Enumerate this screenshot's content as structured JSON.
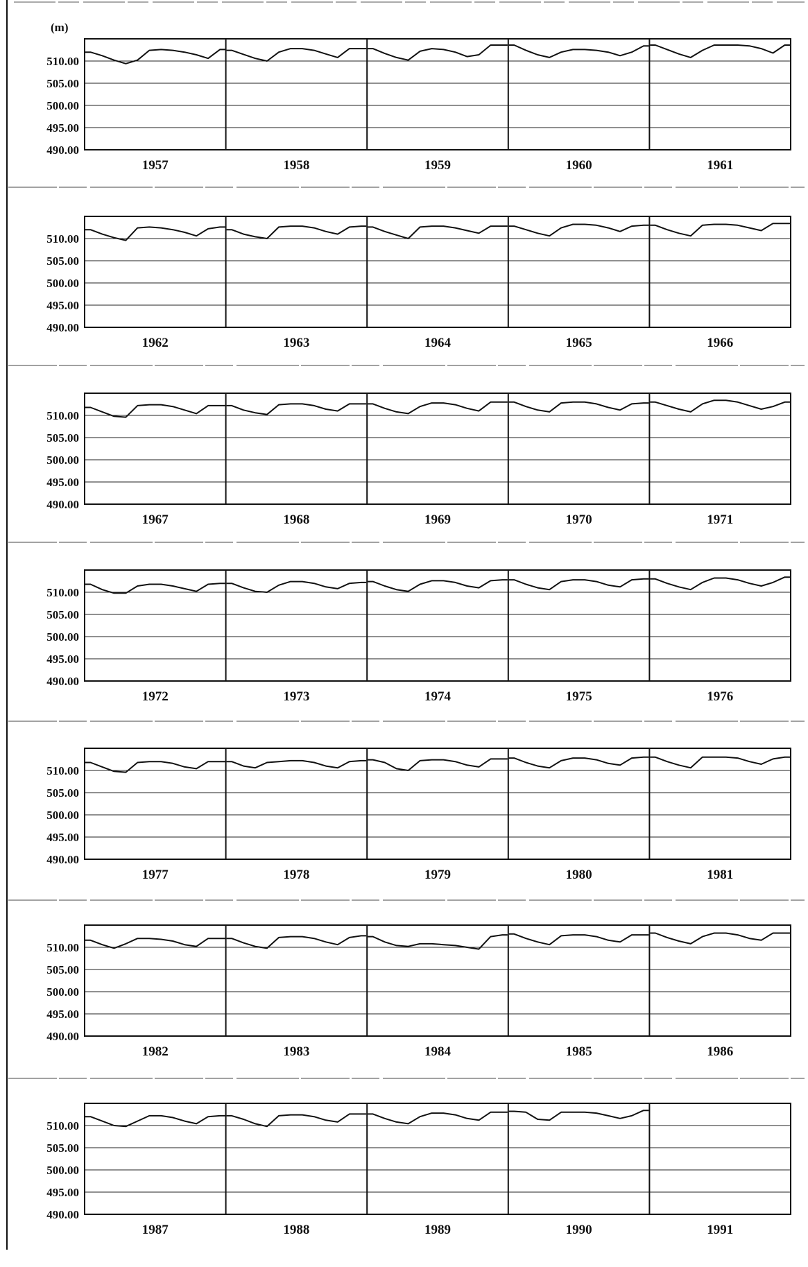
{
  "unit_label": "(m)",
  "chart_data": {
    "type": "line",
    "ylabel": "(m)",
    "ylim": [
      490,
      515
    ],
    "yticks": [
      510.0,
      505.0,
      500.0,
      495.0,
      490.0
    ],
    "ytick_labels": [
      "510.00",
      "505.00",
      "500.00",
      "495.00",
      "490.00"
    ],
    "grid": true,
    "x_unit": "month",
    "years": [
      1957,
      1958,
      1959,
      1960,
      1961,
      1962,
      1963,
      1964,
      1965,
      1966,
      1967,
      1968,
      1969,
      1970,
      1971,
      1972,
      1973,
      1974,
      1975,
      1976,
      1977,
      1978,
      1979,
      1980,
      1981,
      1982,
      1983,
      1984,
      1985,
      1986,
      1987,
      1988,
      1989,
      1990,
      1991
    ],
    "panels": [
      {
        "years": [
          "1957",
          "1958",
          "1959",
          "1960",
          "1961"
        ]
      },
      {
        "years": [
          "1962",
          "1963",
          "1964",
          "1965",
          "1966"
        ]
      },
      {
        "years": [
          "1967",
          "1968",
          "1969",
          "1970",
          "1971"
        ]
      },
      {
        "years": [
          "1972",
          "1973",
          "1974",
          "1975",
          "1976"
        ]
      },
      {
        "years": [
          "1977",
          "1978",
          "1979",
          "1980",
          "1981"
        ]
      },
      {
        "years": [
          "1982",
          "1983",
          "1984",
          "1985",
          "1986"
        ]
      },
      {
        "years": [
          "1987",
          "1988",
          "1989",
          "1990",
          "1991"
        ]
      }
    ],
    "series": [
      {
        "year": 1957,
        "values": [
          512.0,
          511.2,
          510.2,
          509.4,
          510.2,
          512.4,
          512.6,
          512.4,
          512.0,
          511.4,
          510.6,
          512.6
        ]
      },
      {
        "year": 1958,
        "values": [
          512.4,
          511.5,
          510.6,
          510.0,
          512.0,
          512.8,
          512.8,
          512.4,
          511.6,
          510.8,
          512.8,
          512.8
        ]
      },
      {
        "year": 1959,
        "values": [
          512.8,
          511.7,
          510.8,
          510.2,
          512.2,
          512.8,
          512.6,
          512.0,
          511.0,
          511.4,
          513.6,
          513.6
        ]
      },
      {
        "year": 1960,
        "values": [
          513.6,
          512.4,
          511.4,
          510.8,
          512.0,
          512.6,
          512.6,
          512.4,
          512.0,
          511.2,
          512.0,
          513.4
        ]
      },
      {
        "year": 1961,
        "values": [
          513.6,
          512.6,
          511.6,
          510.8,
          512.4,
          513.6,
          513.6,
          513.6,
          513.4,
          512.8,
          511.8,
          513.6
        ]
      },
      {
        "year": 1962,
        "values": [
          512.0,
          511.0,
          510.2,
          509.6,
          512.4,
          512.6,
          512.4,
          512.0,
          511.4,
          510.6,
          512.2,
          512.6
        ]
      },
      {
        "year": 1963,
        "values": [
          512.0,
          511.0,
          510.4,
          510.0,
          512.6,
          512.8,
          512.8,
          512.4,
          511.6,
          511.0,
          512.6,
          512.8
        ]
      },
      {
        "year": 1964,
        "values": [
          512.6,
          511.6,
          510.8,
          510.0,
          512.6,
          512.8,
          512.8,
          512.4,
          511.8,
          511.2,
          512.8,
          512.8
        ]
      },
      {
        "year": 1965,
        "values": [
          512.8,
          512.0,
          511.2,
          510.6,
          512.4,
          513.2,
          513.2,
          513.0,
          512.4,
          511.6,
          512.8,
          513.0
        ]
      },
      {
        "year": 1966,
        "values": [
          513.0,
          512.0,
          511.2,
          510.6,
          513.0,
          513.2,
          513.2,
          513.0,
          512.4,
          511.8,
          513.4,
          513.4
        ]
      },
      {
        "year": 1967,
        "values": [
          511.8,
          510.8,
          509.8,
          509.6,
          512.2,
          512.4,
          512.4,
          512.0,
          511.2,
          510.4,
          512.2,
          512.2
        ]
      },
      {
        "year": 1968,
        "values": [
          512.2,
          511.2,
          510.6,
          510.2,
          512.4,
          512.6,
          512.6,
          512.2,
          511.4,
          511.0,
          512.6,
          512.6
        ]
      },
      {
        "year": 1969,
        "values": [
          512.6,
          511.6,
          510.8,
          510.4,
          512.0,
          512.8,
          512.8,
          512.4,
          511.6,
          511.0,
          513.0,
          513.0
        ]
      },
      {
        "year": 1970,
        "values": [
          513.0,
          512.0,
          511.2,
          510.8,
          512.8,
          513.0,
          513.0,
          512.6,
          511.8,
          511.2,
          512.6,
          512.8
        ]
      },
      {
        "year": 1971,
        "values": [
          513.0,
          512.2,
          511.4,
          510.8,
          512.6,
          513.4,
          513.4,
          513.0,
          512.2,
          511.4,
          512.0,
          513.0
        ]
      },
      {
        "year": 1972,
        "values": [
          511.8,
          510.6,
          509.8,
          509.8,
          511.4,
          511.8,
          511.8,
          511.4,
          510.8,
          510.2,
          511.8,
          512.0
        ]
      },
      {
        "year": 1973,
        "values": [
          512.0,
          511.0,
          510.2,
          510.0,
          511.6,
          512.4,
          512.4,
          512.0,
          511.2,
          510.8,
          512.0,
          512.2
        ]
      },
      {
        "year": 1974,
        "values": [
          512.4,
          511.4,
          510.6,
          510.2,
          511.8,
          512.6,
          512.6,
          512.2,
          511.4,
          511.0,
          512.6,
          512.8
        ]
      },
      {
        "year": 1975,
        "values": [
          512.8,
          511.8,
          511.0,
          510.6,
          512.4,
          512.8,
          512.8,
          512.4,
          511.6,
          511.2,
          512.8,
          513.0
        ]
      },
      {
        "year": 1976,
        "values": [
          513.0,
          512.0,
          511.2,
          510.6,
          512.2,
          513.2,
          513.2,
          512.8,
          512.0,
          511.4,
          512.2,
          513.4
        ]
      },
      {
        "year": 1977,
        "values": [
          511.8,
          510.8,
          509.8,
          509.6,
          511.8,
          512.0,
          512.0,
          511.6,
          510.8,
          510.4,
          512.0,
          512.0
        ]
      },
      {
        "year": 1978,
        "values": [
          512.0,
          511.0,
          510.6,
          511.8,
          512.0,
          512.2,
          512.2,
          511.8,
          511.0,
          510.6,
          512.0,
          512.2
        ]
      },
      {
        "year": 1979,
        "values": [
          512.4,
          511.8,
          510.4,
          510.0,
          512.2,
          512.4,
          512.4,
          512.0,
          511.2,
          510.8,
          512.6,
          512.6
        ]
      },
      {
        "year": 1980,
        "values": [
          512.8,
          511.8,
          511.0,
          510.6,
          512.2,
          512.8,
          512.8,
          512.4,
          511.6,
          511.2,
          512.8,
          513.0
        ]
      },
      {
        "year": 1981,
        "values": [
          513.0,
          512.0,
          511.2,
          510.6,
          513.0,
          513.0,
          513.0,
          512.8,
          512.0,
          511.4,
          512.6,
          513.0
        ]
      },
      {
        "year": 1982,
        "values": [
          511.6,
          510.6,
          509.8,
          510.8,
          512.0,
          512.0,
          511.8,
          511.4,
          510.6,
          510.2,
          512.0,
          512.0
        ]
      },
      {
        "year": 1983,
        "values": [
          512.0,
          511.0,
          510.2,
          509.8,
          512.2,
          512.4,
          512.4,
          512.0,
          511.2,
          510.6,
          512.2,
          512.6
        ]
      },
      {
        "year": 1984,
        "values": [
          512.4,
          511.2,
          510.4,
          510.2,
          510.8,
          510.8,
          510.6,
          510.4,
          510.0,
          509.6,
          512.4,
          512.8
        ]
      },
      {
        "year": 1985,
        "values": [
          513.0,
          512.0,
          511.2,
          510.6,
          512.6,
          512.8,
          512.8,
          512.4,
          511.6,
          511.2,
          512.8,
          512.8
        ]
      },
      {
        "year": 1986,
        "values": [
          513.2,
          512.2,
          511.4,
          510.8,
          512.4,
          513.2,
          513.2,
          512.8,
          512.0,
          511.6,
          513.2,
          513.2
        ]
      },
      {
        "year": 1987,
        "values": [
          512.0,
          511.0,
          510.0,
          509.8,
          511.0,
          512.2,
          512.2,
          511.8,
          511.0,
          510.4,
          512.0,
          512.2
        ]
      },
      {
        "year": 1988,
        "values": [
          512.2,
          511.4,
          510.4,
          509.8,
          512.2,
          512.4,
          512.4,
          512.0,
          511.2,
          510.8,
          512.6,
          512.6
        ]
      },
      {
        "year": 1989,
        "values": [
          512.6,
          511.6,
          510.8,
          510.4,
          512.0,
          512.8,
          512.8,
          512.4,
          511.6,
          511.2,
          513.0,
          513.0
        ]
      },
      {
        "year": 1990,
        "values": [
          513.2,
          513.0,
          511.4,
          511.2,
          513.0,
          513.0,
          513.0,
          512.8,
          512.2,
          511.6,
          512.2,
          513.4
        ]
      },
      {
        "year": 1991,
        "values": []
      }
    ]
  }
}
